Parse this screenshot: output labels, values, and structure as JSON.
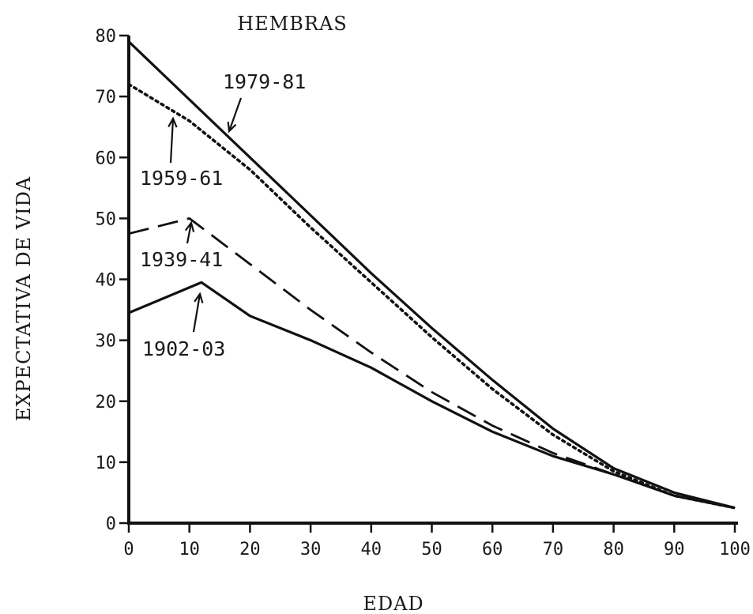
{
  "chart_data": {
    "type": "line",
    "title": "HEMBRAS",
    "xlabel": "EDAD",
    "ylabel": "EXPECTATIVA DE VIDA",
    "xlim": [
      0,
      100
    ],
    "ylim": [
      0,
      80
    ],
    "xticks": [
      0,
      10,
      20,
      30,
      40,
      50,
      60,
      70,
      80,
      90,
      100
    ],
    "yticks": [
      0,
      10,
      20,
      30,
      40,
      50,
      60,
      70,
      80
    ],
    "grid": false,
    "legend": "none",
    "series": [
      {
        "name": "1979-81",
        "style": "solid",
        "x": [
          0,
          10,
          20,
          30,
          40,
          50,
          60,
          70,
          80,
          90,
          100
        ],
        "y": [
          79,
          69.5,
          60,
          50.5,
          41,
          32,
          23.5,
          15.5,
          9,
          5,
          2.5
        ]
      },
      {
        "name": "1959-61",
        "style": "dotted",
        "x": [
          0,
          10,
          20,
          30,
          40,
          50,
          60,
          70,
          80,
          90,
          100
        ],
        "y": [
          72,
          66,
          58,
          48.5,
          39.5,
          30.5,
          22,
          14.5,
          8.5,
          4.5,
          2.5
        ]
      },
      {
        "name": "1939-41",
        "style": "dashed",
        "x": [
          0,
          10,
          20,
          30,
          40,
          50,
          60,
          70,
          80,
          90,
          100
        ],
        "y": [
          47.5,
          50,
          42.5,
          35,
          28,
          21.5,
          16,
          11.5,
          8,
          4.5,
          2.5
        ]
      },
      {
        "name": "1902-03",
        "style": "solid",
        "x": [
          0,
          12,
          20,
          30,
          40,
          50,
          60,
          70,
          80,
          90,
          100
        ],
        "y": [
          34.5,
          39.5,
          34,
          30,
          25.5,
          20,
          15,
          11,
          8,
          4.5,
          2.5
        ]
      }
    ],
    "annotations": [
      {
        "text": "1979-81",
        "x": 16,
        "y": 64
      },
      {
        "text": "1959-61",
        "x": 7,
        "y": 66
      },
      {
        "text": "1939-41",
        "x": 10,
        "y": 50.5
      },
      {
        "text": "1902-03",
        "x": 11,
        "y": 39.5
      }
    ]
  }
}
